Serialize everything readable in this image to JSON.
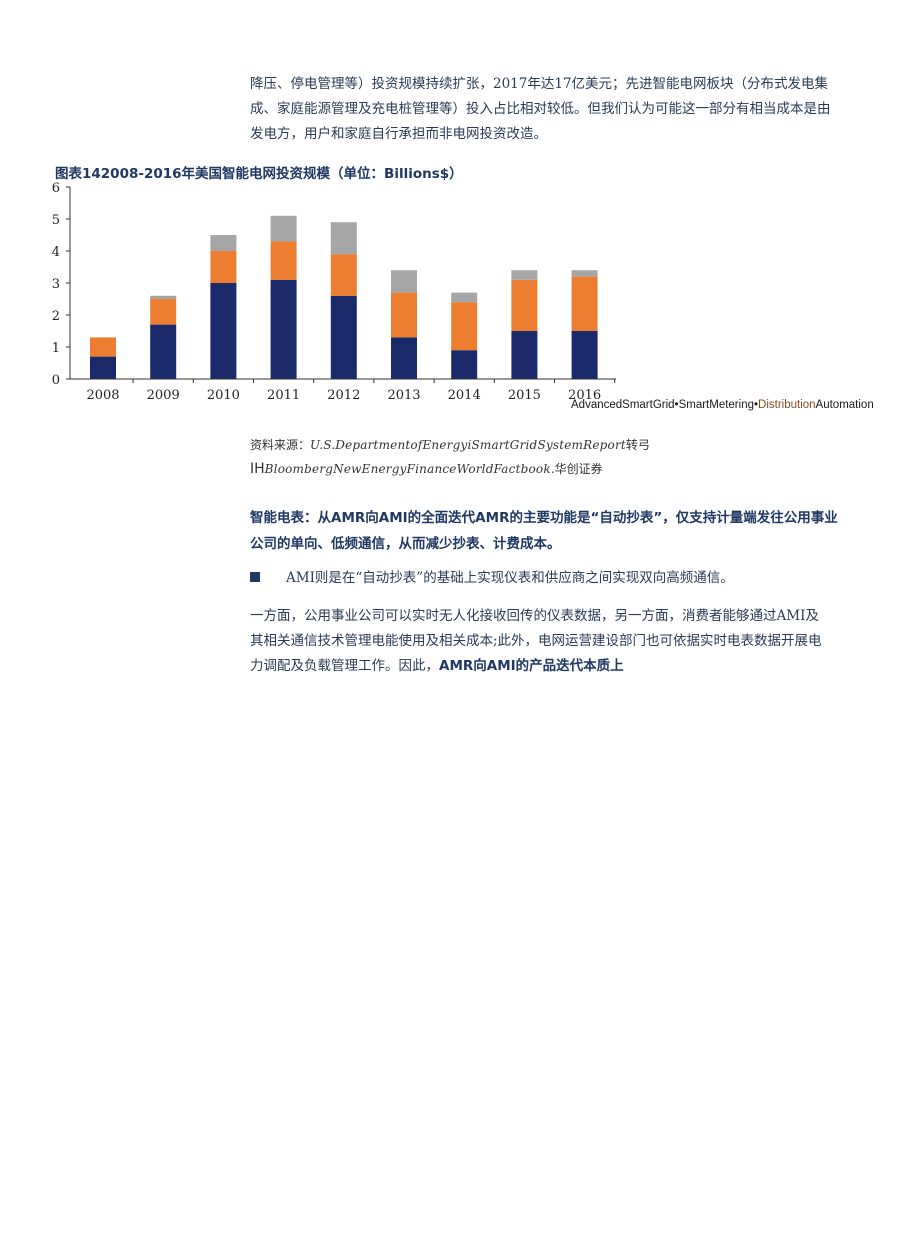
{
  "intro": {
    "lines": [
      "降压、停电管理等）投资规模持续扩张，2017年达17亿美元；先进智能电网板块（分布式发电集",
      "成、家庭能源管理及充电桩管理等）投入占比相对较低。但我们认为可能这一部分有相当成本是由",
      "发电方，用户和家庭自行承担而非电网投资改造。"
    ]
  },
  "chart_title": "图表142008-2016年美国智能电网投资规模（单位：Billions$）",
  "chart_data": {
    "type": "bar",
    "stacked": true,
    "categories": [
      "2008",
      "2009",
      "2010",
      "2011",
      "2012",
      "2013",
      "2014",
      "2015",
      "2016"
    ],
    "series": [
      {
        "name": "SmartMetering",
        "color": "#1b2a6b",
        "values": [
          0.7,
          1.7,
          3.0,
          3.1,
          2.6,
          1.3,
          0.9,
          1.5,
          1.5
        ]
      },
      {
        "name": "Distribution",
        "color": "#ed7d31",
        "values": [
          0.6,
          0.8,
          1.0,
          1.2,
          1.3,
          1.4,
          1.5,
          1.6,
          1.7
        ]
      },
      {
        "name": "Automation",
        "color": "#a6a6a6",
        "values": [
          0.0,
          0.1,
          0.5,
          0.8,
          1.0,
          0.7,
          0.3,
          0.3,
          0.2
        ]
      }
    ],
    "ylim": [
      0,
      6
    ],
    "yticks": [
      0,
      1,
      2,
      3,
      4,
      5,
      6
    ],
    "grid": false
  },
  "legend": {
    "text_a": "AdvancedSmartGrid•SmartMetering•",
    "text_b": "Distribution",
    "text_c": "Automation"
  },
  "source": {
    "label": "资料来源：",
    "line1_italic": "U.S.DepartmentofEnergyiSmartGridSystemReport",
    "line1_tail": "转弓",
    "line2_prefix": "IH",
    "line2_italic": "BloombergNewEnergyFinanceWorldFactbook",
    "line2_tail": ".华创证券"
  },
  "heading": {
    "lines": [
      "智能电表：从AMR向AMI的全面迭代AMR的主要功能是“自动抄表”，仅支持计量端发往公用事业",
      "公司的单向、低频通信，从而减少抄表、计费成本。"
    ]
  },
  "bullet": {
    "text": "AMI则是在“自动抄表”的基础上实现仪表和供应商之间实现双向高频通信。"
  },
  "body2": {
    "line1": "一方面，公用事业公司可以实时无人化接收回传的仪表数据，另一方面，消费者能够通过AMI及",
    "line2": "其相关通信技术管理电能使用及相关成本;此外，电网运营建设部门也可依据实时电表数据开展电",
    "line3_plain": "力调配及负载管理工作。因此，",
    "line3_bold": "AMR向AMI的产品迭代本质上"
  }
}
